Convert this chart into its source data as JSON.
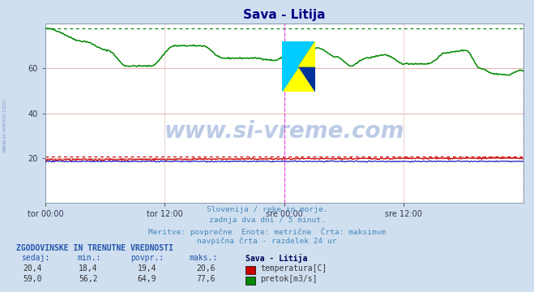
{
  "title": "Sava - Litija",
  "bg_color": "#d0dff0",
  "plot_bg_color": "#ffffff",
  "grid_color_h": "#e8b0b0",
  "grid_color_v": "#e8d0d0",
  "xlabel_ticks": [
    "tor 00:00",
    "tor 12:00",
    "sre 00:00",
    "sre 12:00"
  ],
  "ylim": [
    0,
    80
  ],
  "yticks": [
    20,
    40,
    60
  ],
  "temp_color": "#cc0000",
  "flow_color": "#008800",
  "vline_color": "#ee44ee",
  "watermark_text": "www.si-vreme.com",
  "watermark_color": "#2255aa",
  "watermark_alpha": 0.3,
  "caption_lines": [
    "Slovenija / reke in morje.",
    "zadnja dva dni / 5 minut.",
    "Meritve: povprečne  Enote: metrične  Črta: maksimum",
    "navpična črta - razdelek 24 ur"
  ],
  "caption_color": "#4488bb",
  "table_header": "ZGODOVINSKE IN TRENUTNE VREDNOSTI",
  "table_cols": [
    "sedaj:",
    "min.:",
    "povpr.:",
    "maks.:"
  ],
  "table_col_station": "Sava - Litija",
  "table_row1": [
    "20,4",
    "18,4",
    "19,4",
    "20,6"
  ],
  "table_row2": [
    "59,0",
    "56,2",
    "64,9",
    "77,6"
  ],
  "table_label1": "temperatura[C]",
  "table_label2": "pretok[m3/s]",
  "temp_max": 20.6,
  "flow_max": 77.6,
  "n_points": 576,
  "ylabel_text": "www.si-vreme.com"
}
